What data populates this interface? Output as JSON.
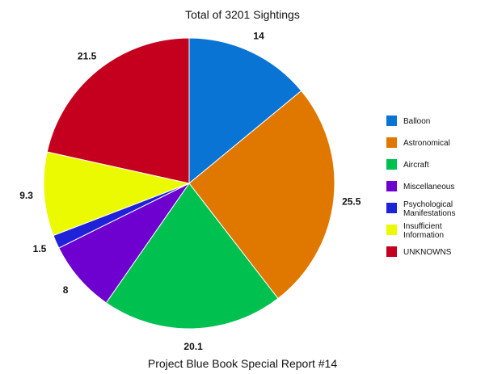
{
  "chart_data": {
    "type": "pie",
    "title": "Total of 3201 Sightings",
    "caption": "Project Blue Book Special Report #14",
    "legend_position": "right",
    "slices": [
      {
        "label": "Balloon",
        "value": 14,
        "value_label": "14",
        "color": "#0A74D4"
      },
      {
        "label": "Astronomical",
        "value": 25.5,
        "value_label": "25.5",
        "color": "#E07800"
      },
      {
        "label": "Aircraft",
        "value": 20.1,
        "value_label": "20.1",
        "color": "#00C050"
      },
      {
        "label": "Miscellaneous",
        "value": 8,
        "value_label": "8",
        "color": "#6E00D0"
      },
      {
        "label": "Psychological Manifestations",
        "value": 1.5,
        "value_label": "1.5",
        "color": "#1E22D8"
      },
      {
        "label": "Insufficient Information",
        "value": 9.3,
        "value_label": "9.3",
        "color": "#ECFA00"
      },
      {
        "label": "UNKNOWNS",
        "value": 21.5,
        "value_label": "21.5",
        "color": "#C4001E"
      }
    ]
  }
}
